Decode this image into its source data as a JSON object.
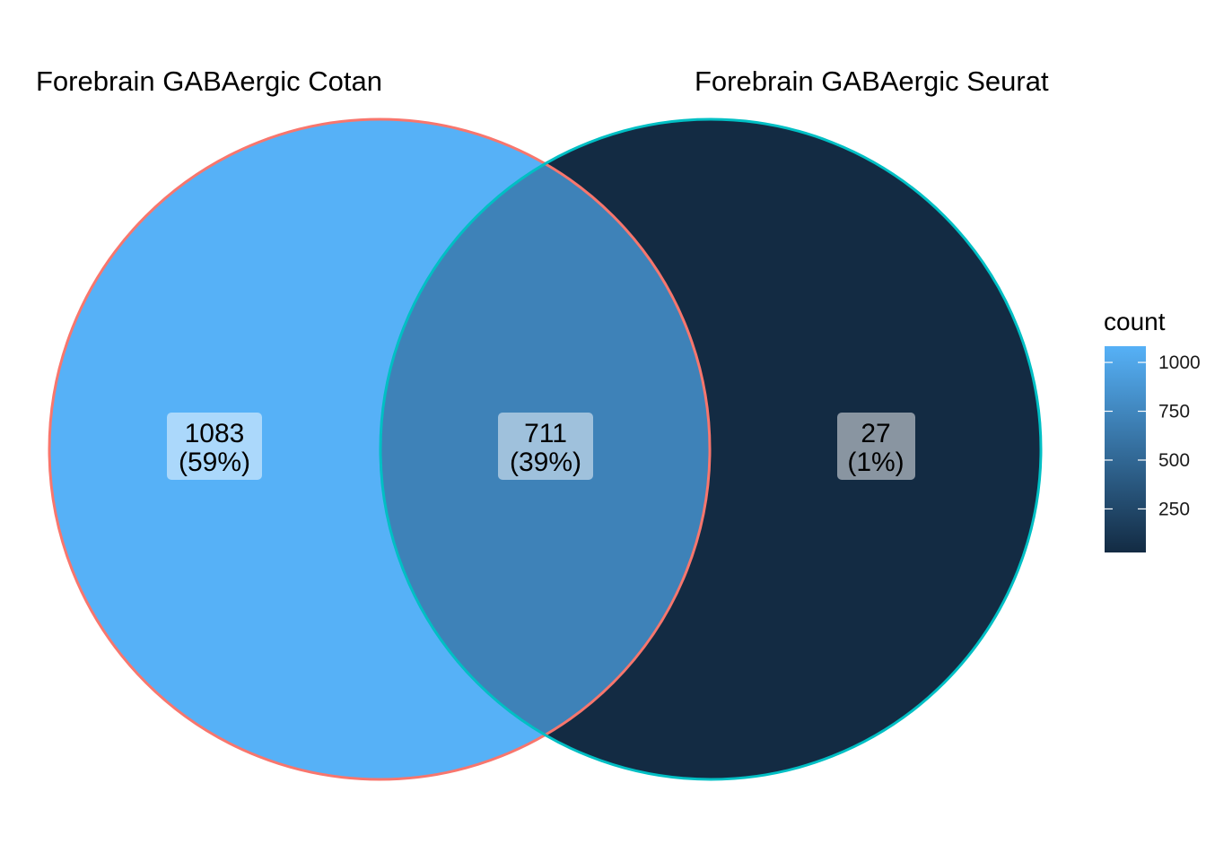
{
  "chart_data": {
    "type": "venn",
    "sets": [
      {
        "name": "Forebrain GABAergic Cotan",
        "outline_color": "#F8766D"
      },
      {
        "name": "Forebrain GABAergic Seurat",
        "outline_color": "#00BFC4"
      }
    ],
    "regions": [
      {
        "sets": [
          "Forebrain GABAergic Cotan"
        ],
        "count": "1083",
        "percent": "(59%)",
        "count_value": 1083
      },
      {
        "sets": [
          "Forebrain GABAergic Cotan",
          "Forebrain GABAergic Seurat"
        ],
        "count": "711",
        "percent": "(39%)",
        "count_value": 711
      },
      {
        "sets": [
          "Forebrain GABAergic Seurat"
        ],
        "count": "27",
        "percent": "(1%)",
        "count_value": 27
      }
    ],
    "legend": {
      "title": "count",
      "placement": "right",
      "range": [
        27,
        1083
      ],
      "ticks": [
        {
          "value": 1000,
          "label": "1000"
        },
        {
          "value": 750,
          "label": "750"
        },
        {
          "value": 500,
          "label": "500"
        },
        {
          "value": 250,
          "label": "250"
        }
      ],
      "low_color": "#132B43",
      "high_color": "#56B1F7"
    }
  }
}
